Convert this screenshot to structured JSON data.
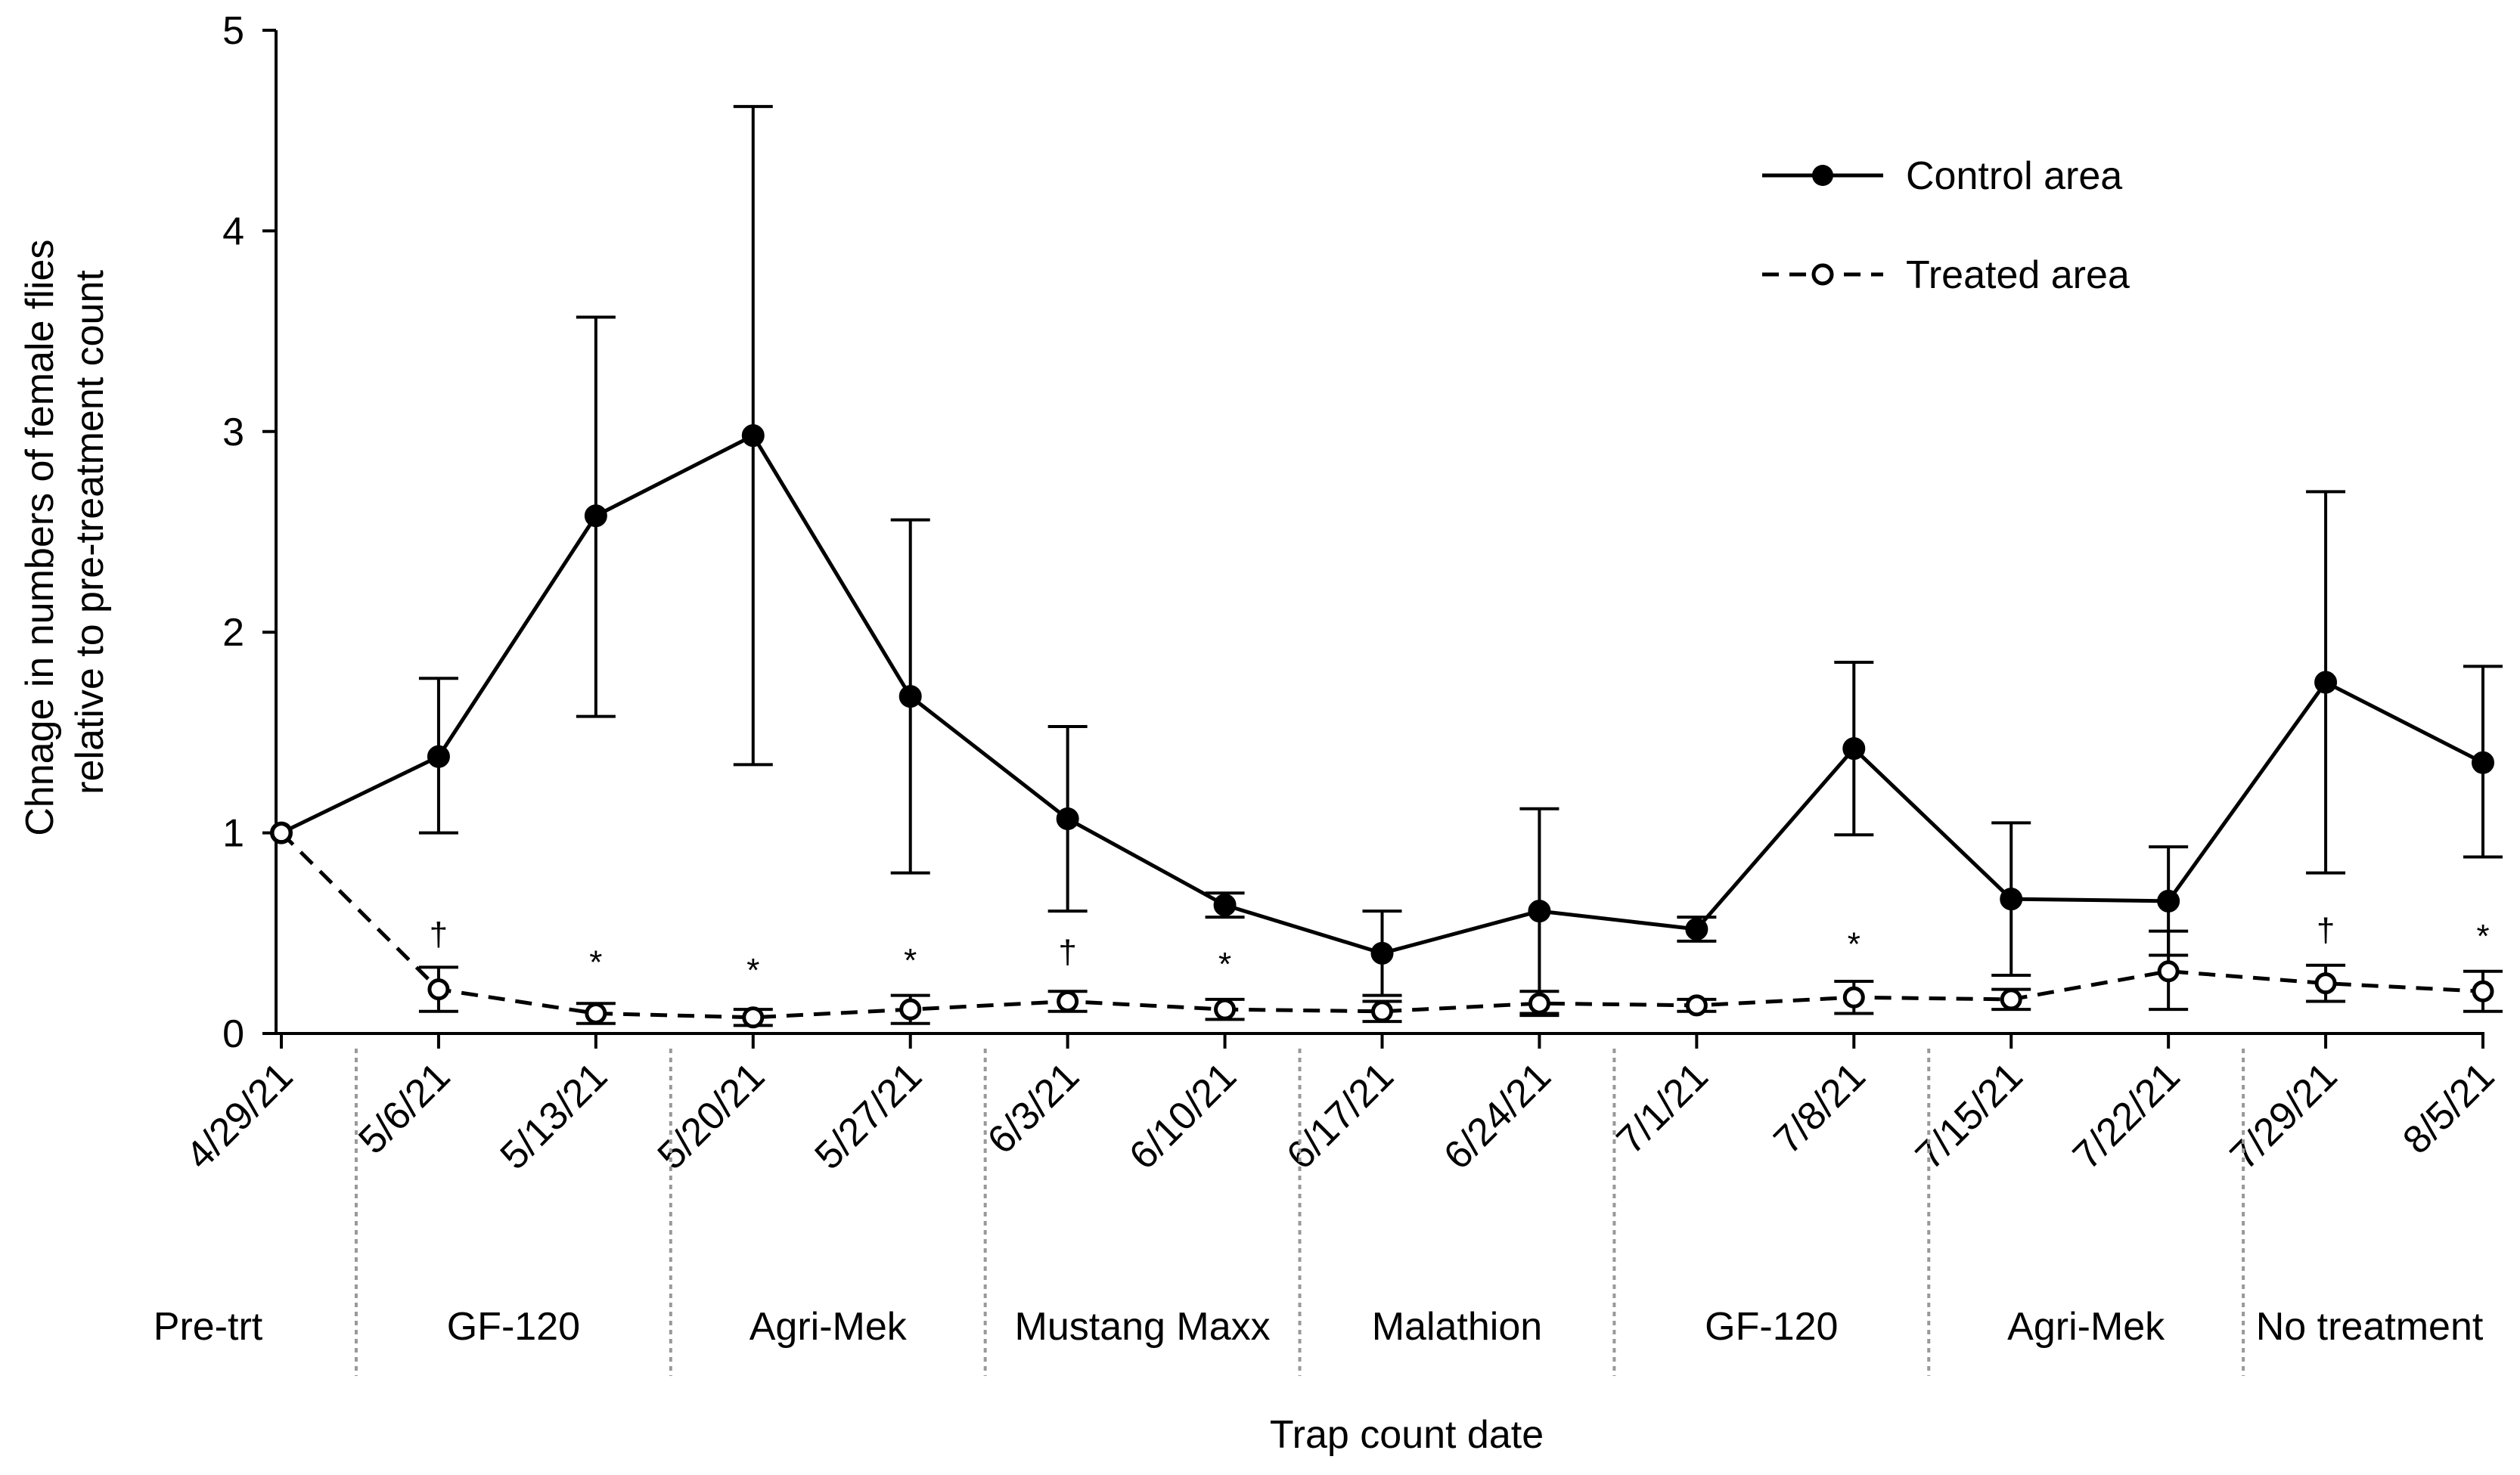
{
  "chart_data": {
    "type": "line",
    "title": "",
    "xlabel": "Trap count date",
    "ylabel_lines": [
      "Chnage in numbers of female flies",
      "relative to pre-treatment count"
    ],
    "ylim": [
      0,
      5
    ],
    "yticks": [
      "0",
      "1",
      "2",
      "3",
      "4",
      "5"
    ],
    "categories": [
      "4/29/21",
      "5/6/21",
      "5/13/21",
      "5/20/21",
      "5/27/21",
      "6/3/21",
      "6/10/21",
      "6/17/21",
      "6/24/21",
      "7/1/21",
      "7/8/21",
      "7/15/21",
      "7/22/21",
      "7/29/21",
      "8/5/21"
    ],
    "series": [
      {
        "name": "Control area",
        "line": "solid",
        "marker": "filled-circle",
        "values": [
          1.0,
          1.38,
          2.58,
          2.98,
          1.68,
          1.07,
          0.64,
          0.4,
          0.61,
          0.52,
          1.42,
          0.67,
          0.66,
          1.75,
          1.35
        ],
        "err_upper": [
          1.0,
          1.77,
          3.57,
          4.62,
          2.56,
          1.53,
          0.7,
          0.61,
          1.12,
          0.58,
          1.85,
          1.05,
          0.93,
          2.7,
          1.83
        ],
        "err_lower": [
          1.0,
          1.0,
          1.58,
          1.34,
          0.8,
          0.61,
          0.58,
          0.19,
          0.1,
          0.46,
          0.99,
          0.29,
          0.39,
          0.8,
          0.88
        ]
      },
      {
        "name": "Treated area",
        "line": "dashed",
        "marker": "open-circle",
        "values": [
          1.0,
          0.22,
          0.1,
          0.08,
          0.12,
          0.16,
          0.12,
          0.11,
          0.15,
          0.14,
          0.18,
          0.17,
          0.31,
          0.25,
          0.21
        ],
        "err_upper": [
          1.0,
          0.33,
          0.15,
          0.12,
          0.19,
          0.21,
          0.17,
          0.16,
          0.21,
          0.17,
          0.26,
          0.22,
          0.51,
          0.34,
          0.31
        ],
        "err_lower": [
          1.0,
          0.11,
          0.05,
          0.04,
          0.05,
          0.11,
          0.07,
          0.06,
          0.09,
          0.11,
          0.1,
          0.12,
          0.12,
          0.16,
          0.11
        ]
      }
    ],
    "annotations": [
      "",
      "†",
      "*",
      "*",
      "*",
      "†",
      "*",
      "",
      "",
      "",
      "*",
      "",
      "",
      "†",
      "*"
    ],
    "annotation_values": [
      null,
      0.5,
      0.36,
      0.32,
      0.37,
      0.41,
      0.35,
      null,
      null,
      null,
      0.45,
      null,
      null,
      0.52,
      0.49
    ],
    "treatment_periods": [
      {
        "label": "Pre-trt",
        "start": 0,
        "end": 0
      },
      {
        "label": "GF-120",
        "start": 1,
        "end": 2
      },
      {
        "label": "Agri-Mek",
        "start": 3,
        "end": 4
      },
      {
        "label": "Mustang Maxx",
        "start": 5,
        "end": 6
      },
      {
        "label": "Malathion",
        "start": 7,
        "end": 8
      },
      {
        "label": "GF-120",
        "start": 9,
        "end": 10
      },
      {
        "label": "Agri-Mek",
        "start": 11,
        "end": 12
      },
      {
        "label": "No treatment",
        "start": 13,
        "end": 14
      }
    ],
    "legend_position": "top-right"
  }
}
